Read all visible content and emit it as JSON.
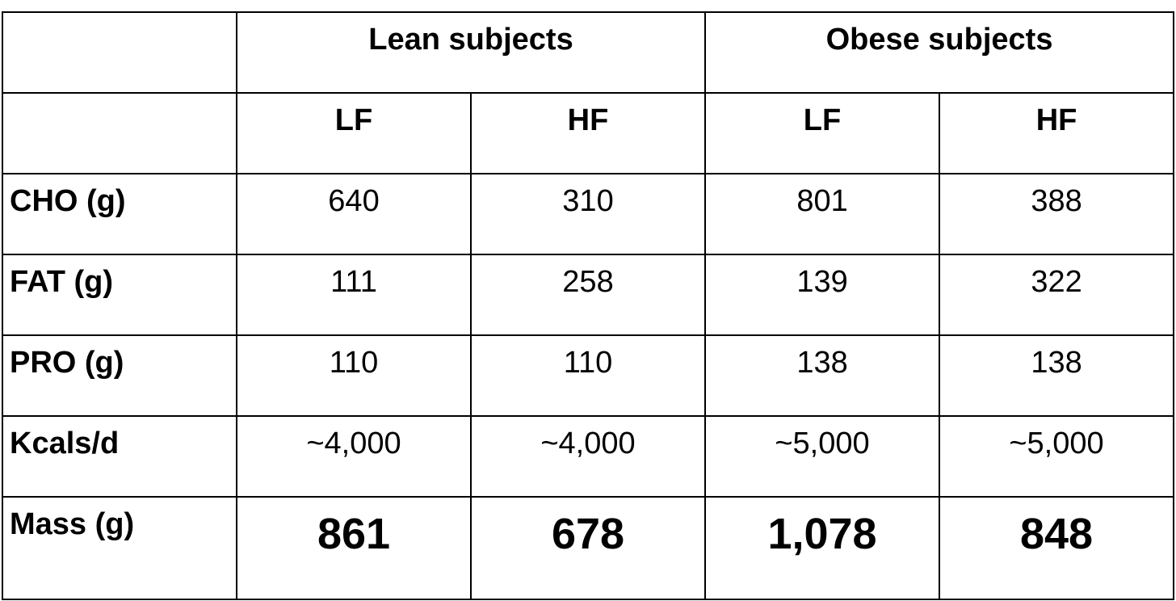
{
  "table": {
    "groups": [
      "Lean subjects",
      "Obese subjects"
    ],
    "subheaders": [
      "LF",
      "HF",
      "LF",
      "HF"
    ],
    "rows": [
      {
        "label": "CHO (g)",
        "cells": [
          "640",
          "310",
          "801",
          "388"
        ]
      },
      {
        "label": "FAT (g)",
        "cells": [
          "111",
          "258",
          "139",
          "322"
        ]
      },
      {
        "label": "PRO (g)",
        "cells": [
          "110",
          "110",
          "138",
          "138"
        ]
      },
      {
        "label": "Kcals/d",
        "cells": [
          "~4,000",
          "~4,000",
          "~5,000",
          "~5,000"
        ]
      },
      {
        "label": "Mass (g)",
        "cells": [
          "861",
          "678",
          "1,078",
          "848"
        ]
      }
    ]
  }
}
